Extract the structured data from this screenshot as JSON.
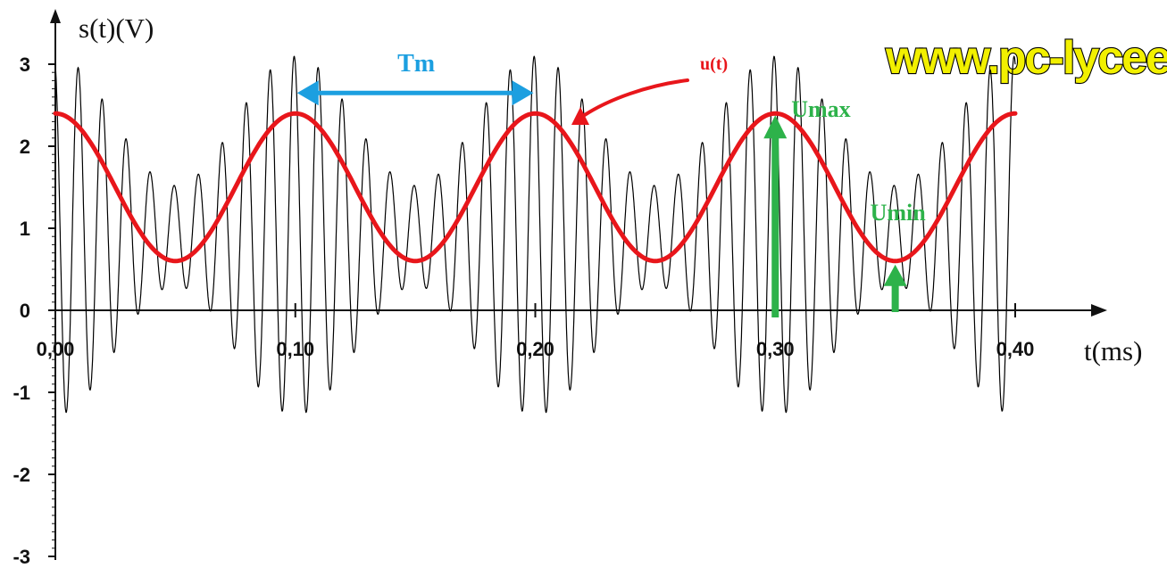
{
  "watermark": "www.pc-lycee",
  "chart_data": {
    "type": "line",
    "ylabel": "s(t)(V)",
    "xlabel": "t(ms)",
    "xlim": [
      0,
      0.4
    ],
    "ylim": [
      -3,
      3
    ],
    "x_ticks": [
      "0,00",
      "0,10",
      "0,20",
      "0,30",
      "0,40"
    ],
    "x_tick_values": [
      0,
      0.1,
      0.2,
      0.3,
      0.4
    ],
    "y_ticks": [
      "3",
      "2",
      "1",
      "0",
      "-1",
      "-2",
      "-3"
    ],
    "y_tick_values": [
      3,
      2,
      1,
      0,
      -1,
      -2,
      -3
    ],
    "grid": false,
    "series": [
      {
        "name": "",
        "description_kind": "modulated signal s(t)",
        "color": "#000000",
        "offset": 0.8,
        "modulation_amplitude": 0.9,
        "carrier_amplitude": 1.5,
        "modulation_period": 0.1,
        "carrier_period": 0.01,
        "t_start": 0.0,
        "t_end": 0.4
      },
      {
        "name": "u(t)",
        "description_kind": "envelope",
        "color": "#e8161b",
        "offset": 1.5,
        "amplitude": 0.9,
        "period": 0.1,
        "t_start": 0.0,
        "t_end": 0.4
      }
    ],
    "annotations": {
      "tm": {
        "text": "Tm",
        "color": "#1c9fe0",
        "x_from": 0.1,
        "x_to": 0.2,
        "y": 2.65
      },
      "u_label": {
        "text": "u(t)",
        "color": "#e8161b"
      },
      "umax": {
        "text": "Umax",
        "color": "#2db24a",
        "x": 0.3,
        "y": 2.4
      },
      "umin": {
        "text": "Umin",
        "color": "#2db24a",
        "x": 0.35,
        "y": 0.6
      }
    }
  }
}
